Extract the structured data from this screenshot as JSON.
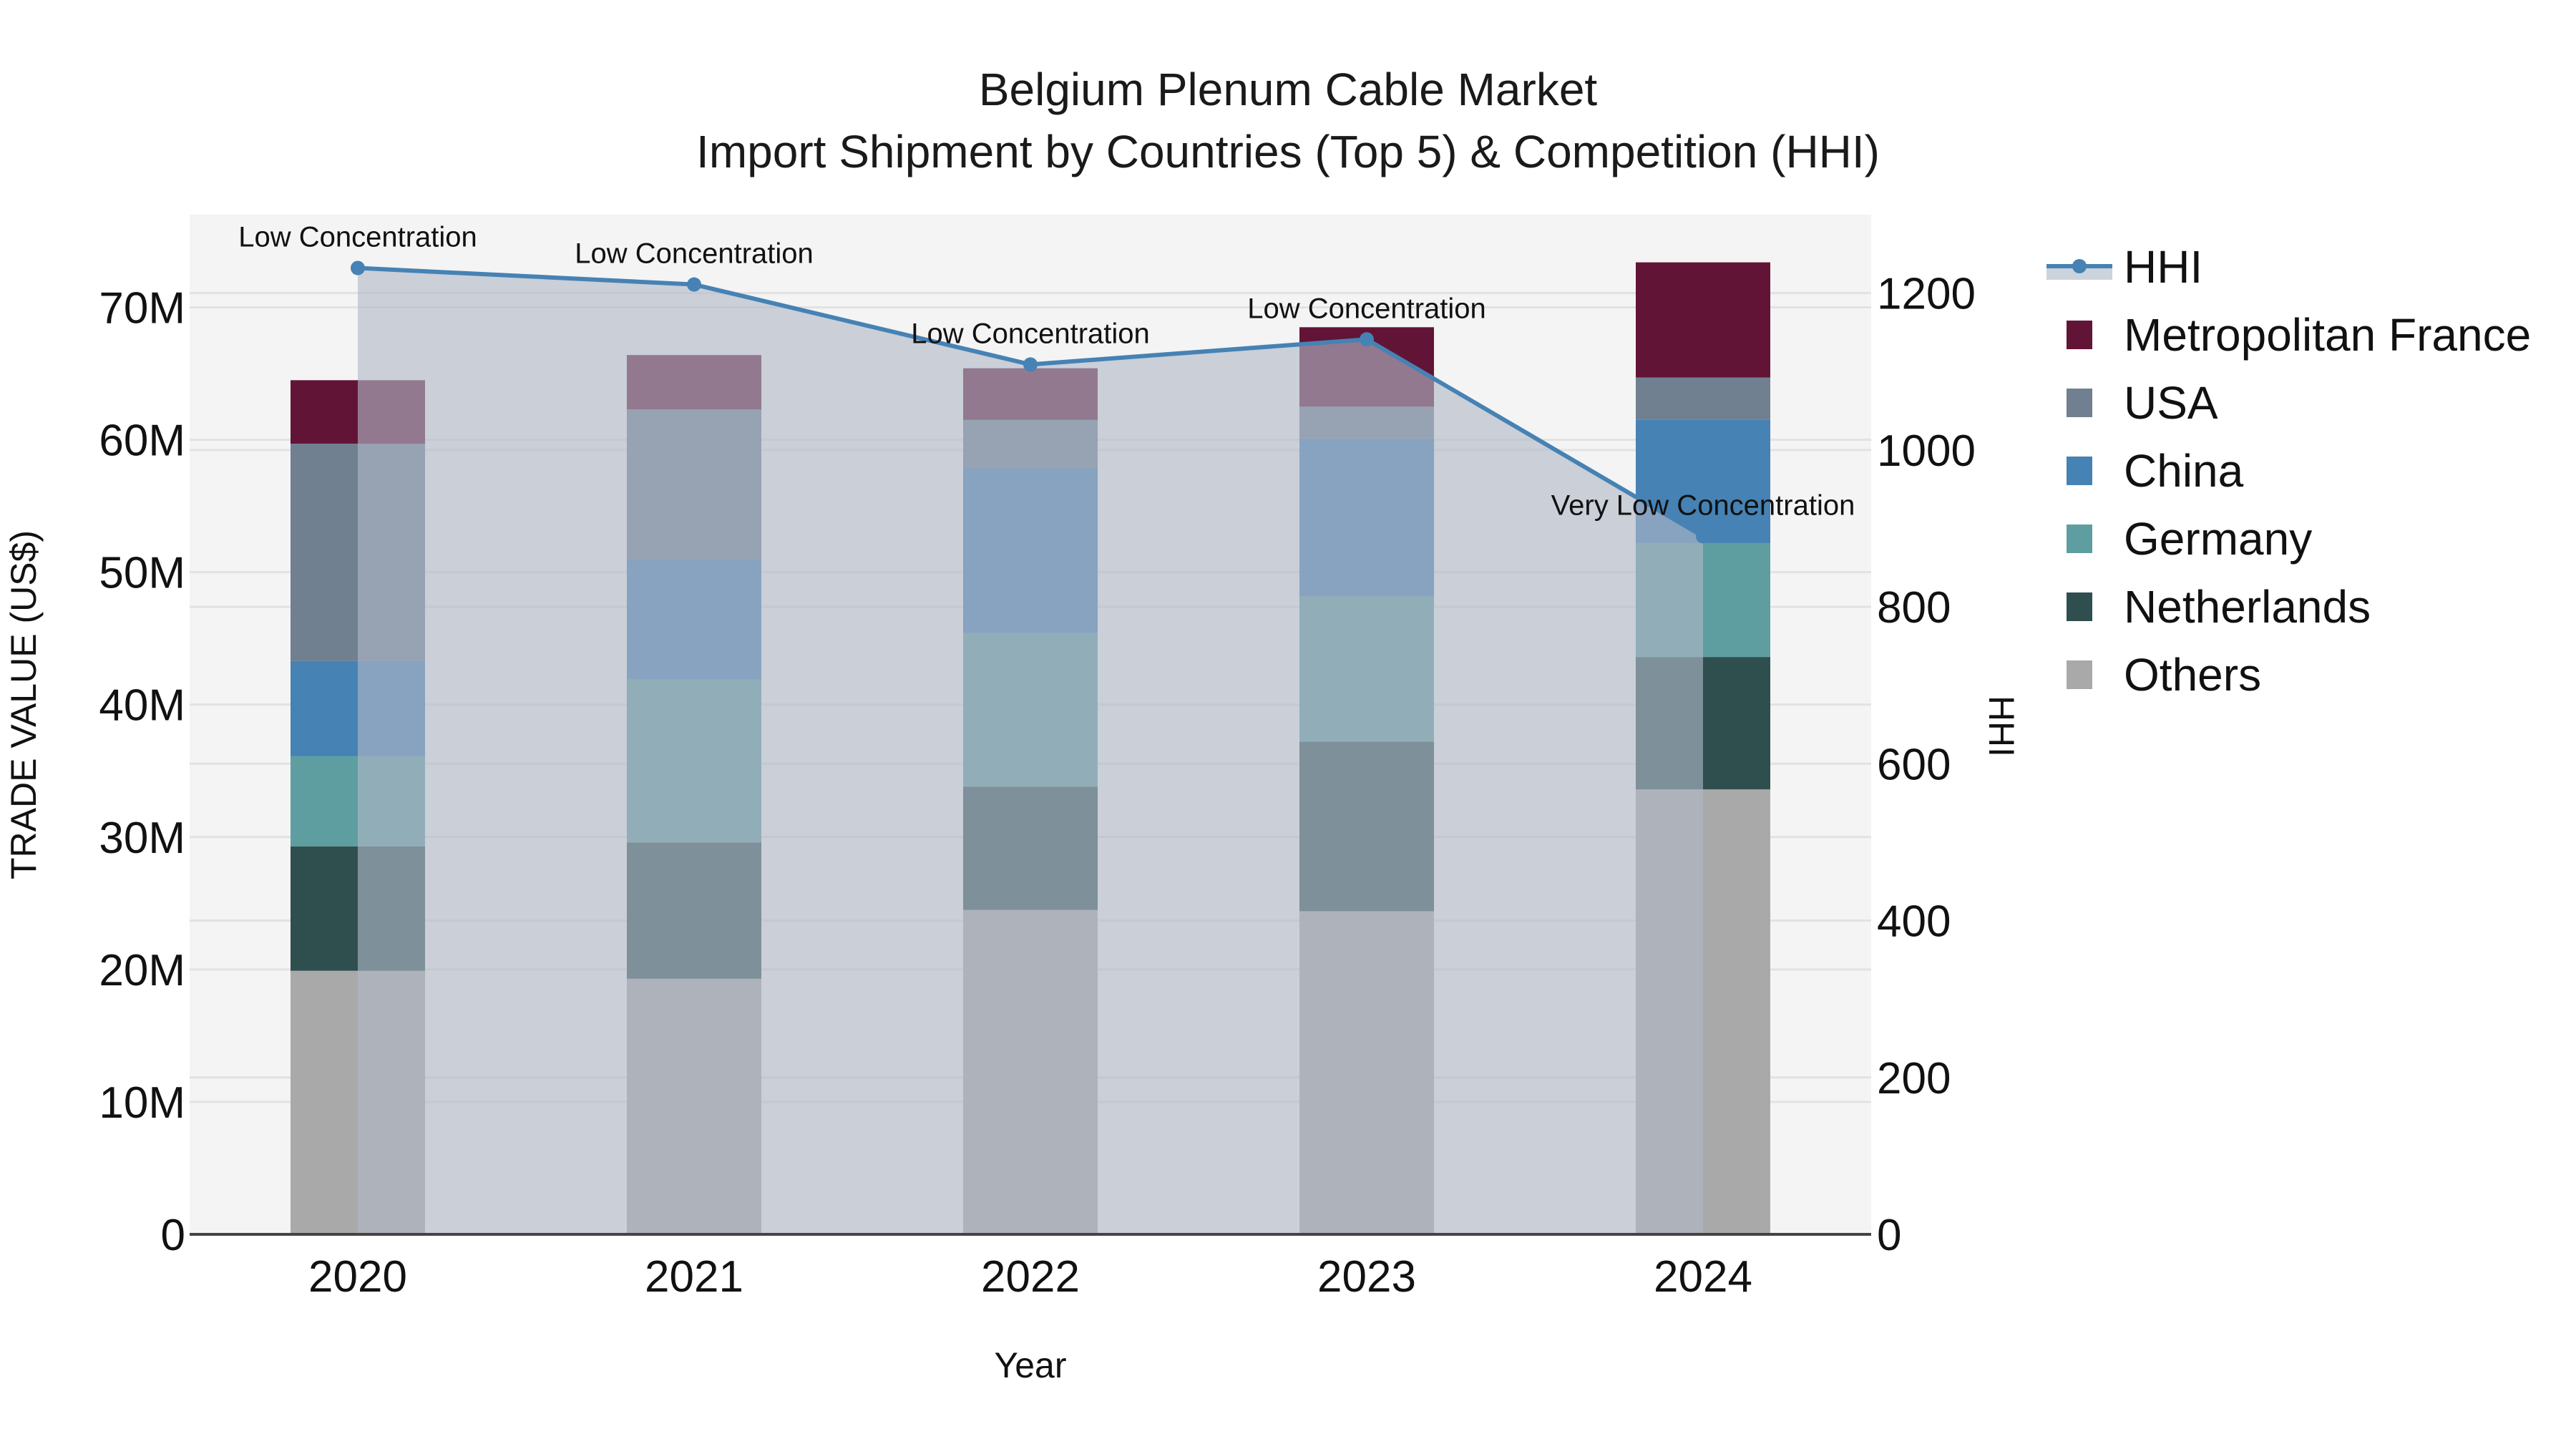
{
  "title": {
    "line1": "Belgium Plenum Cable Market",
    "line2": "Import Shipment by Countries (Top 5) & Competition (HHI)"
  },
  "axes": {
    "x_label": "Year",
    "y_left_label": "TRADE VALUE (US$)",
    "y_right_label": "HHI",
    "y_left_ticks": [
      "0",
      "10M",
      "20M",
      "30M",
      "40M",
      "50M",
      "60M",
      "70M"
    ],
    "y_right_ticks": [
      "0",
      "200",
      "400",
      "600",
      "800",
      "1000",
      "1200"
    ]
  },
  "legend": [
    {
      "name": "HHI",
      "color": "#4682b4",
      "type": "line"
    },
    {
      "name": "Metropolitan France",
      "color": "#621436",
      "type": "bar"
    },
    {
      "name": "USA",
      "color": "#708090",
      "type": "bar"
    },
    {
      "name": "China",
      "color": "#4682b4",
      "type": "bar"
    },
    {
      "name": "Germany",
      "color": "#5f9ea0",
      "type": "bar"
    },
    {
      "name": "Netherlands",
      "color": "#2f4f4f",
      "type": "bar"
    },
    {
      "name": "Others",
      "color": "#a9a9a9",
      "type": "bar"
    }
  ],
  "chart_data": {
    "type": "bar",
    "stacked": true,
    "title": "Belgium Plenum Cable Market — Import Shipment by Countries (Top 5) & Competition (HHI)",
    "xlabel": "Year",
    "ylabel": "TRADE VALUE (US$)",
    "y2label": "HHI",
    "ylim": [
      0,
      77000000
    ],
    "y2lim": [
      0,
      1300
    ],
    "categories": [
      "2020",
      "2021",
      "2022",
      "2023",
      "2024"
    ],
    "series": [
      {
        "name": "Others",
        "color": "#a9a9a9",
        "values": [
          19900000,
          19300000,
          24500000,
          24400000,
          33600000
        ]
      },
      {
        "name": "Netherlands",
        "color": "#2f4f4f",
        "values": [
          9400000,
          10300000,
          9300000,
          12800000,
          10000000
        ]
      },
      {
        "name": "Germany",
        "color": "#5f9ea0",
        "values": [
          6800000,
          12300000,
          11600000,
          11000000,
          8600000
        ]
      },
      {
        "name": "China",
        "color": "#4682b4",
        "values": [
          7200000,
          9000000,
          12500000,
          11900000,
          9300000
        ]
      },
      {
        "name": "USA",
        "color": "#708090",
        "values": [
          16400000,
          11400000,
          3600000,
          2400000,
          3200000
        ]
      },
      {
        "name": "Metropolitan France",
        "color": "#621436",
        "values": [
          4800000,
          4100000,
          3900000,
          6000000,
          8700000
        ]
      }
    ],
    "line_series": {
      "name": "HHI",
      "axis": "y2",
      "color": "#4682b4",
      "fill": "tozeroy",
      "values": [
        1232,
        1211,
        1109,
        1141,
        890
      ],
      "annotations": [
        "Low Concentration",
        "Low Concentration",
        "Low Concentration",
        "Low Concentration",
        "Very Low Concentration"
      ]
    }
  }
}
